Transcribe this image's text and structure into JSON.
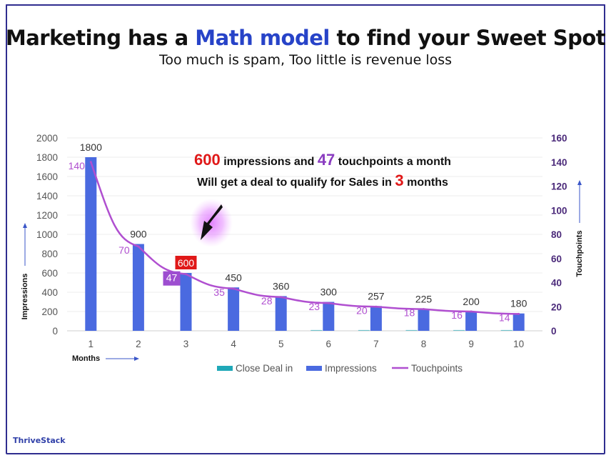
{
  "header": {
    "title_part1": "Marketing has a ",
    "title_highlight": "Math model",
    "title_part2": " to find your Sweet Spot",
    "subtitle": "Too much is spam, Too little is revenue loss"
  },
  "brand": "ThriveStack",
  "colors": {
    "impressions": "#4a6ae0",
    "touchpoints": "#b04fd0",
    "close_deal": "#1fa8b8",
    "highlight_red": "#e01818",
    "title_blue": "#2743c8",
    "right_axis": "#4b2a7a"
  },
  "callout": {
    "impressions_value": "600",
    "impressions_text": " impressions and ",
    "touchpoints_value": "47",
    "touchpoints_text": " touchpoints a month",
    "line2_text": "Will get a deal to qualify for Sales in ",
    "months_value": "3",
    "months_text": " months"
  },
  "chart_data": {
    "type": "bar",
    "categories": [
      "1",
      "2",
      "3",
      "4",
      "5",
      "6",
      "7",
      "8",
      "9",
      "10"
    ],
    "series": [
      {
        "name": "Close Deal in",
        "type": "bar",
        "axis": "left",
        "values": [
          0,
          0,
          0,
          0,
          0,
          1,
          1,
          1,
          1,
          1
        ]
      },
      {
        "name": "Impressions",
        "type": "bar",
        "axis": "left",
        "values": [
          1800,
          900,
          600,
          450,
          360,
          300,
          257,
          225,
          200,
          180
        ]
      },
      {
        "name": "Touchpoints",
        "type": "line",
        "axis": "right",
        "values": [
          140,
          70,
          47,
          35,
          28,
          23,
          20,
          18,
          16,
          14
        ]
      }
    ],
    "xlabel": "Months",
    "ylabel": "Impressions",
    "y2label": "Touchpoints",
    "ylim": [
      0,
      2000
    ],
    "y2lim": [
      0,
      160
    ],
    "yticks": [
      "0",
      "200",
      "400",
      "600",
      "800",
      "1000",
      "1200",
      "1400",
      "1600",
      "1800",
      "2000"
    ],
    "y2ticks": [
      "0",
      "20",
      "40",
      "60",
      "80",
      "100",
      "120",
      "140",
      "160"
    ],
    "grid": true,
    "legend_position": "bottom",
    "highlight_category": "3"
  }
}
